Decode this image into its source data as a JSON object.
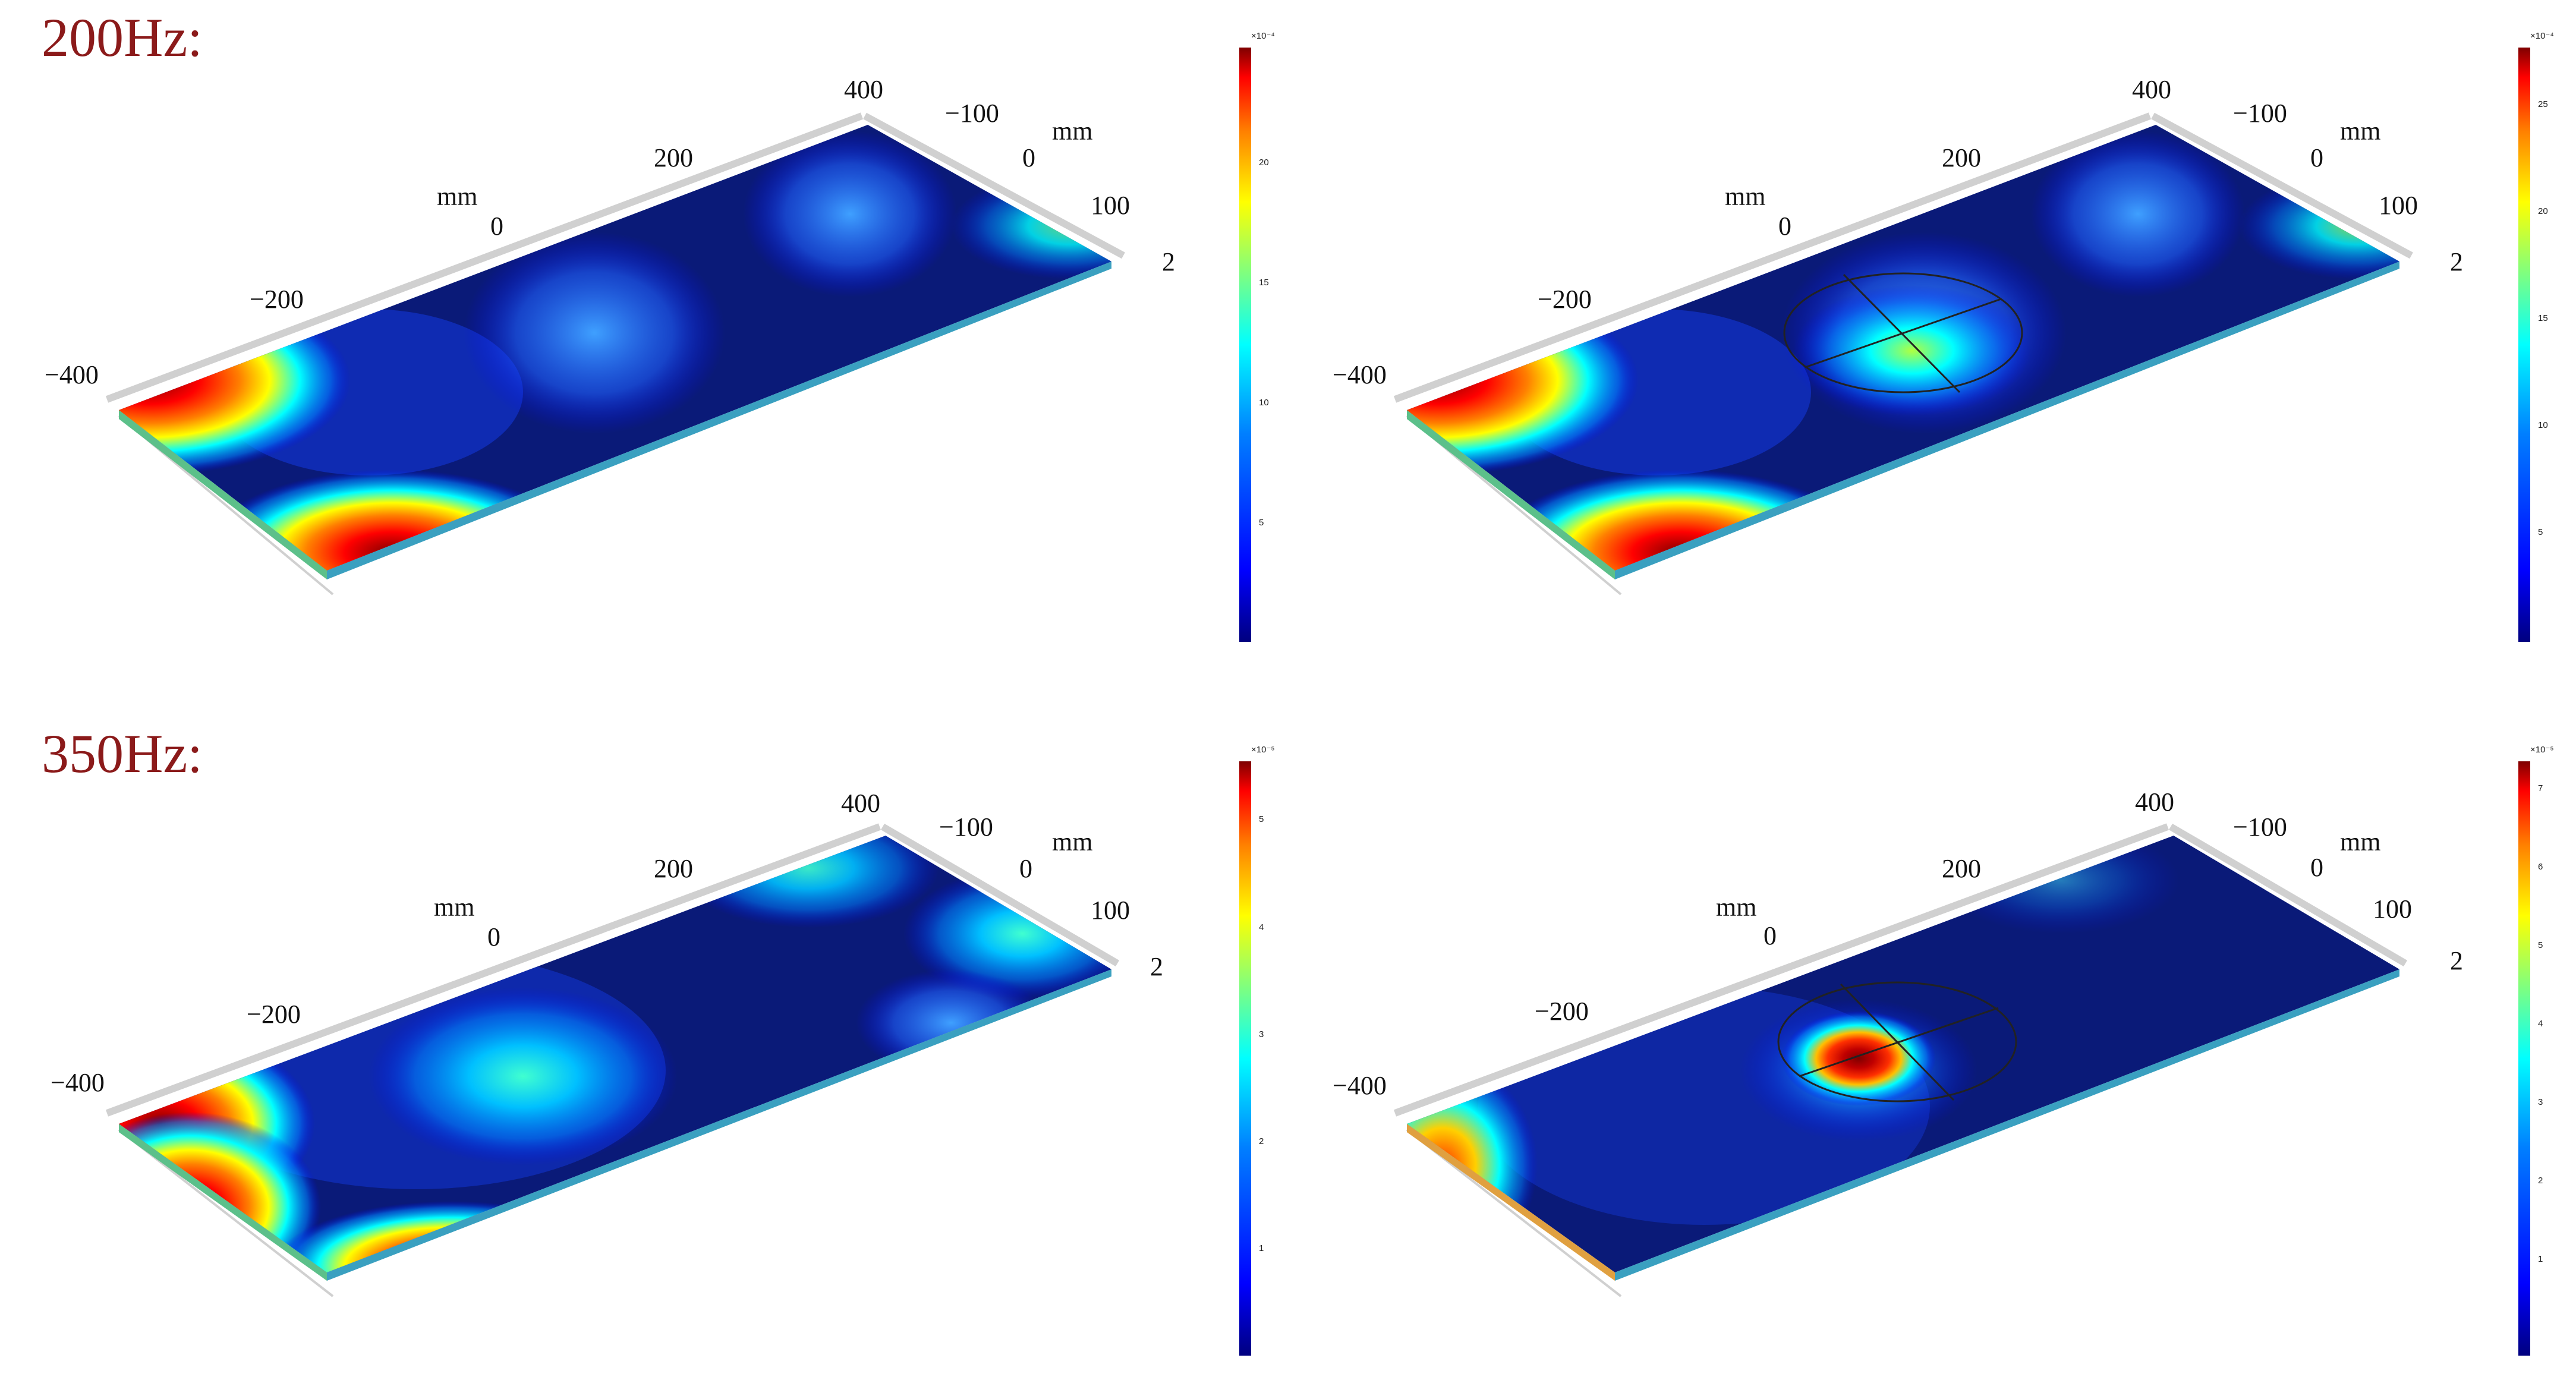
{
  "rows": [
    {
      "title": "200Hz:"
    },
    {
      "title": "350Hz:"
    }
  ],
  "panels": [
    {
      "id": "p200-plain",
      "axis": {
        "x_ticks": [
          "−400",
          "−200",
          "0",
          "200",
          "400"
        ],
        "x_unit": "mm",
        "y_ticks": [
          "−100",
          "0",
          "100"
        ],
        "y_unit": "mm",
        "z_tick": "2"
      },
      "colorbar": {
        "exponent": "×10⁻⁴",
        "ticks": [
          "20",
          "15",
          "10",
          "5"
        ]
      },
      "has_disc": false
    },
    {
      "id": "p200-disc",
      "axis": {
        "x_ticks": [
          "−400",
          "−200",
          "0",
          "200",
          "400"
        ],
        "x_unit": "mm",
        "y_ticks": [
          "−100",
          "0",
          "100"
        ],
        "y_unit": "mm",
        "z_tick": "2"
      },
      "colorbar": {
        "exponent": "×10⁻⁴",
        "ticks": [
          "25",
          "20",
          "15",
          "10",
          "5"
        ]
      },
      "has_disc": true
    },
    {
      "id": "p350-plain",
      "axis": {
        "x_ticks": [
          "−400",
          "−200",
          "0",
          "200",
          "400"
        ],
        "x_unit": "mm",
        "y_ticks": [
          "−100",
          "0",
          "100"
        ],
        "y_unit": "mm",
        "z_tick": "2"
      },
      "colorbar": {
        "exponent": "×10⁻⁵",
        "ticks": [
          "5",
          "4",
          "3",
          "2",
          "1"
        ]
      },
      "has_disc": false
    },
    {
      "id": "p350-disc",
      "axis": {
        "x_ticks": [
          "−400",
          "−200",
          "0",
          "200",
          "400"
        ],
        "x_unit": "mm",
        "y_ticks": [
          "−100",
          "0",
          "100"
        ],
        "y_unit": "mm",
        "z_tick": "2"
      },
      "colorbar": {
        "exponent": "×10⁻⁵",
        "ticks": [
          "7",
          "6",
          "5",
          "4",
          "3",
          "2",
          "1"
        ]
      },
      "has_disc": true
    }
  ],
  "colors": {
    "colormap": [
      "#00007f",
      "#0000ff",
      "#007fff",
      "#00ffff",
      "#7fff7f",
      "#ffff00",
      "#ff7f00",
      "#ff0000",
      "#7f0000"
    ],
    "plate_base": "#0a1a78",
    "title": "#8b1a1a"
  }
}
